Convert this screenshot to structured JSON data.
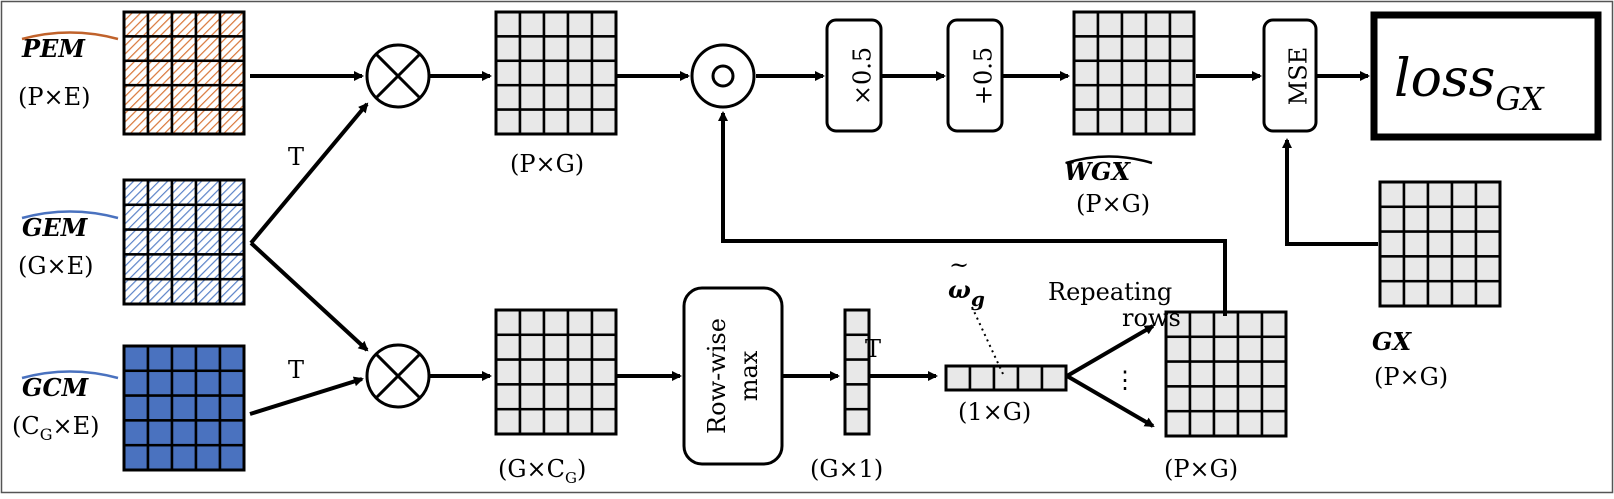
{
  "inputs": {
    "pem": {
      "name": "PEM",
      "dims": "(P×E)",
      "color": "#c0622b"
    },
    "gem": {
      "name": "GEM",
      "dims": "(G×E)",
      "color": "#4a72bf"
    },
    "gcm": {
      "name": "GCM",
      "dims_open": "(C",
      "dims_sub": "G",
      "dims_close": "×E)",
      "color": "#4a72bf"
    }
  },
  "ops": {
    "transpose": "T",
    "scale": "×0.5",
    "shift": "+0.5",
    "mse": "MSE",
    "rowwise_max": [
      "Row-wise",
      "max"
    ]
  },
  "matrices": {
    "pg_top": "(P×G)",
    "wgx": {
      "name": "WGX",
      "dims": "(P×G)"
    },
    "gcg": {
      "open": "(G×C",
      "sub": "G",
      "close": ")"
    },
    "g1": "(G×1)",
    "one_g": "(1×G)",
    "pg_repeat": "(P×G)",
    "gx": {
      "name": "GX",
      "dims": "(P×G)"
    }
  },
  "omega": {
    "symbol": "ω",
    "sub": "g"
  },
  "repeating": [
    "Repeating",
    "rows"
  ],
  "ellipsis": "⋮",
  "loss": {
    "base": "loss",
    "sub": "GX"
  },
  "colors": {
    "cell_gray": "#e8e8e8",
    "gcm_fill": "#4a72bf",
    "pem_hatch": "#d9773a",
    "gem_hatch": "#5a82c8"
  }
}
